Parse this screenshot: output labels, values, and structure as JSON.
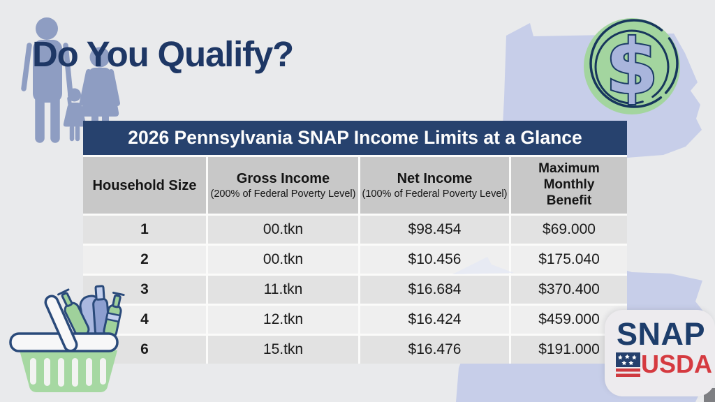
{
  "title": "Do You Qualify?",
  "table": {
    "title": "2026 Pennsylvania SNAP Income Limits at a Glance",
    "columns": [
      {
        "label": "Household Size",
        "sublabel": ""
      },
      {
        "label": "Gross Income",
        "sublabel": "(200% of Federal Poverty Level)"
      },
      {
        "label": "Net Income",
        "sublabel": "(100% of Federal Poverty Level)"
      },
      {
        "label": "Maximum Monthly Benefit",
        "sublabel": ""
      }
    ],
    "rows": [
      [
        "1",
        "00.tkn",
        "$98.454",
        "$69.000"
      ],
      [
        "2",
        "00.tkn",
        "$10.456",
        "$175.040"
      ],
      [
        "3",
        "11.tkn",
        "$16.684",
        "$370.400"
      ],
      [
        "4",
        "12.tkn",
        "$16.424",
        "$459.000"
      ],
      [
        "6",
        "15.tkn",
        "$16.476",
        "$191.000"
      ]
    ]
  },
  "logo": {
    "snap": "SNAP",
    "usda": "USDA"
  },
  "icons": {
    "family": "family-silhouette-icon",
    "coin": "dollar-coin-icon",
    "basket": "grocery-basket-icon",
    "flag": "us-flag-icon",
    "state": "pennsylvania-state-shape"
  },
  "colors": {
    "background": "#e9eaec",
    "navy": "#27426e",
    "title_text": "#1e3765",
    "state_lavender": "#c7cee9",
    "coin_green": "#a3d59f",
    "header_gray": "#c8c8c8",
    "row_dark": "#e2e2e2",
    "row_light": "#efefef",
    "snap_navy": "#1d3d6b",
    "usda_red": "#d53a40",
    "silhouette_blue": "#8e9dc2",
    "basket_green": "#a6d8a2"
  },
  "chart_data": {
    "type": "table",
    "title": "2026 Pennsylvania SNAP Income Limits at a Glance",
    "columns": [
      "Household Size",
      "Gross Income (200% of Federal Poverty Level)",
      "Net Income (100% of Federal Poverty Level)",
      "Maximum Monthly Benefit"
    ],
    "rows": [
      [
        "1",
        "00.tkn",
        "$98.454",
        "$69.000"
      ],
      [
        "2",
        "00.tkn",
        "$10.456",
        "$175.040"
      ],
      [
        "3",
        "11.tkn",
        "$16.684",
        "$370.400"
      ],
      [
        "4",
        "12.tkn",
        "$16.424",
        "$459.000"
      ],
      [
        "6",
        "15.tkn",
        "$16.476",
        "$191.000"
      ]
    ]
  }
}
